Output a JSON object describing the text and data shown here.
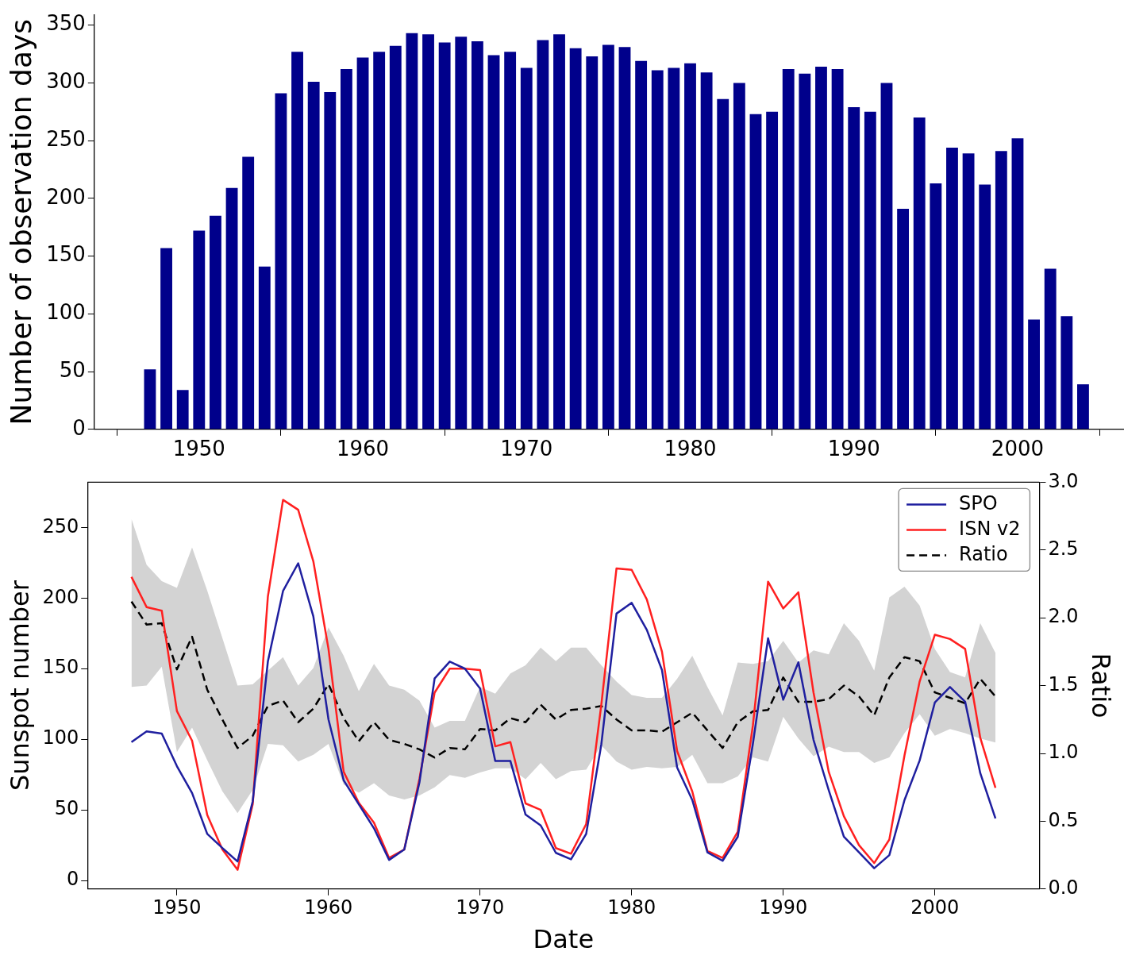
{
  "chart_data": [
    {
      "type": "bar",
      "ylabel": "Number of observation days",
      "color": "#00008b",
      "grid": false,
      "x": [
        1947,
        1948,
        1949,
        1950,
        1951,
        1952,
        1953,
        1954,
        1955,
        1956,
        1957,
        1958,
        1959,
        1960,
        1961,
        1962,
        1963,
        1964,
        1965,
        1966,
        1967,
        1968,
        1969,
        1970,
        1971,
        1972,
        1973,
        1974,
        1975,
        1976,
        1977,
        1978,
        1979,
        1980,
        1981,
        1982,
        1983,
        1984,
        1985,
        1986,
        1987,
        1988,
        1989,
        1990,
        1991,
        1992,
        1993,
        1994,
        1995,
        1996,
        1997,
        1998,
        1999,
        2000,
        2001,
        2002,
        2003,
        2004
      ],
      "values": [
        52,
        157,
        34,
        172,
        185,
        209,
        236,
        141,
        291,
        327,
        301,
        292,
        312,
        322,
        327,
        332,
        343,
        342,
        335,
        340,
        336,
        324,
        327,
        313,
        337,
        342,
        330,
        323,
        333,
        331,
        319,
        311,
        313,
        317,
        309,
        286,
        300,
        273,
        275,
        312,
        308,
        314,
        312,
        279,
        275,
        300,
        191,
        270,
        213,
        244,
        239,
        212,
        241,
        252,
        95,
        139,
        98,
        39
      ],
      "xlim": [
        1943.6,
        2006.5
      ],
      "xticks": [
        1950,
        1960,
        1970,
        1980,
        1990,
        2000
      ],
      "ylim": [
        0,
        359
      ],
      "yticks": [
        0,
        50,
        100,
        150,
        200,
        250,
        300,
        350
      ]
    },
    {
      "type": "line",
      "xlabel": "Date",
      "ylabel": "Sunspot number",
      "y2label": "Ratio",
      "legend": "top right",
      "grid": false,
      "x": [
        1947,
        1948,
        1949,
        1950,
        1951,
        1952,
        1953,
        1954,
        1955,
        1956,
        1957,
        1958,
        1959,
        1960,
        1961,
        1962,
        1963,
        1964,
        1965,
        1966,
        1967,
        1968,
        1969,
        1970,
        1971,
        1972,
        1973,
        1974,
        1975,
        1976,
        1977,
        1978,
        1979,
        1980,
        1981,
        1982,
        1983,
        1984,
        1985,
        1986,
        1987,
        1988,
        1989,
        1990,
        1991,
        1992,
        1993,
        1994,
        1995,
        1996,
        1997,
        1998,
        1999,
        2000,
        2001,
        2002,
        2003,
        2004
      ],
      "series": [
        {
          "name": "SPO",
          "color": "#1f1f9f",
          "values": [
            98,
            105.6,
            104,
            81,
            62,
            33,
            23,
            13.5,
            56,
            155,
            205,
            224.6,
            187,
            114,
            71,
            54,
            37,
            14.6,
            22,
            69.5,
            143,
            155,
            150,
            136,
            84.6,
            84.6,
            46.7,
            39,
            19.6,
            15,
            33,
            96.5,
            189,
            196.6,
            177.5,
            149,
            80,
            57,
            20,
            14,
            31,
            97,
            171.5,
            128,
            154.5,
            99.5,
            64,
            31,
            20,
            8.7,
            18,
            57,
            85,
            126,
            137,
            126.6,
            76,
            44
          ]
        },
        {
          "name": "ISN v2",
          "color": "#ff2020",
          "values": [
            215,
            193.6,
            191,
            120,
            99,
            46.5,
            22,
            7.6,
            54,
            201,
            269.5,
            262.5,
            226,
            164,
            77,
            55,
            41,
            16,
            22,
            72,
            133,
            150,
            150,
            149,
            95,
            98,
            54.6,
            50,
            23,
            19,
            40,
            124.6,
            221,
            220,
            199,
            162,
            91.7,
            63,
            21,
            16,
            34.6,
            110,
            211.6,
            192.6,
            204,
            133,
            77,
            45.5,
            25,
            12.4,
            29,
            88.6,
            141,
            174,
            171,
            164,
            101,
            65.6
          ]
        },
        {
          "name": "Ratio",
          "color": "#000000",
          "axis": "y2",
          "line_style": "dashed",
          "values": [
            2.12,
            1.95,
            1.96,
            1.62,
            1.86,
            1.47,
            1.25,
            1.04,
            1.13,
            1.35,
            1.39,
            1.23,
            1.33,
            1.51,
            1.26,
            1.09,
            1.23,
            1.1,
            1.07,
            1.03,
            0.97,
            1.04,
            1.03,
            1.18,
            1.17,
            1.26,
            1.23,
            1.36,
            1.25,
            1.32,
            1.33,
            1.35,
            1.25,
            1.17,
            1.17,
            1.16,
            1.23,
            1.3,
            1.17,
            1.04,
            1.23,
            1.31,
            1.32,
            1.56,
            1.38,
            1.38,
            1.4,
            1.5,
            1.42,
            1.28,
            1.56,
            1.71,
            1.68,
            1.45,
            1.41,
            1.37,
            1.55,
            1.42
          ],
          "lower": [
            1.49,
            1.5,
            1.64,
            1.01,
            1.19,
            0.95,
            0.72,
            0.56,
            0.73,
            1.07,
            1.06,
            0.94,
            0.99,
            1.07,
            0.77,
            0.71,
            0.78,
            0.69,
            0.66,
            0.69,
            0.75,
            0.84,
            0.82,
            0.86,
            0.89,
            0.89,
            0.81,
            0.93,
            0.81,
            0.87,
            0.88,
            1.06,
            0.94,
            0.88,
            0.9,
            0.89,
            0.9,
            0.99,
            0.78,
            0.78,
            0.83,
            0.97,
            0.94,
            1.27,
            1.11,
            0.98,
            1.05,
            1.01,
            1.01,
            0.93,
            0.97,
            1.15,
            1.29,
            1.13,
            1.18,
            1.15,
            1.11,
            1.08
          ],
          "upper": [
            2.73,
            2.39,
            2.27,
            2.22,
            2.52,
            2.2,
            1.85,
            1.5,
            1.51,
            1.61,
            1.71,
            1.5,
            1.63,
            1.93,
            1.72,
            1.46,
            1.66,
            1.5,
            1.47,
            1.39,
            1.19,
            1.24,
            1.24,
            1.49,
            1.44,
            1.59,
            1.65,
            1.78,
            1.68,
            1.78,
            1.78,
            1.65,
            1.53,
            1.43,
            1.41,
            1.41,
            1.55,
            1.72,
            1.49,
            1.28,
            1.67,
            1.66,
            1.68,
            1.83,
            1.67,
            1.76,
            1.73,
            1.96,
            1.83,
            1.61,
            2.15,
            2.23,
            2.09,
            1.77,
            1.6,
            1.56,
            1.96,
            1.74
          ]
        }
      ],
      "xlim": [
        1944.1,
        2006.9
      ],
      "xticks": [
        1950,
        1960,
        1970,
        1980,
        1990,
        2000
      ],
      "ylim": [
        -6,
        282
      ],
      "yticks": [
        0,
        50,
        100,
        150,
        200,
        250
      ],
      "y2lim": [
        0,
        3
      ],
      "y2ticks": [
        {
          "value": 0,
          "label": "0.0"
        },
        0.5,
        {
          "value": 1,
          "label": "1.0"
        },
        1.5,
        {
          "value": 2,
          "label": "2.0"
        },
        2.5,
        {
          "value": 3,
          "label": "3.0"
        }
      ]
    }
  ]
}
